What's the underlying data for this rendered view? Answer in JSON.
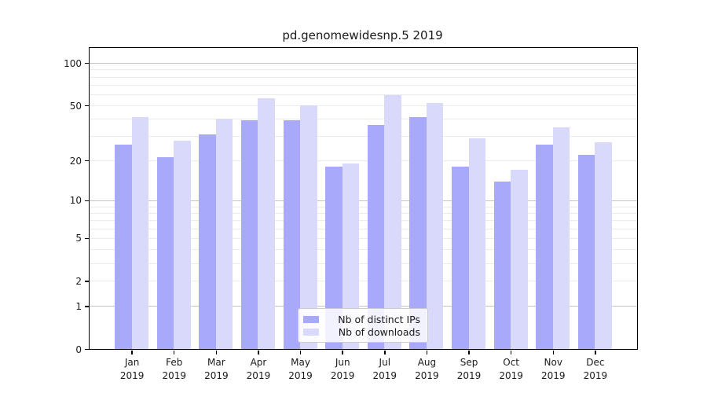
{
  "chart_data": {
    "type": "bar",
    "title": "pd.genomewidesnp.5 2019",
    "categories": [
      "Jan",
      "Feb",
      "Mar",
      "Apr",
      "May",
      "Jun",
      "Jul",
      "Aug",
      "Sep",
      "Oct",
      "Nov",
      "Dec"
    ],
    "category_year": "2019",
    "series": [
      {
        "name": "Nb of distinct IPs",
        "color": "#a9a9fb",
        "values": [
          26,
          21,
          31,
          39,
          39,
          18,
          36,
          41,
          18,
          14,
          26,
          22
        ]
      },
      {
        "name": "Nb of downloads",
        "color": "#d9d9fb",
        "values": [
          41,
          28,
          40,
          56,
          50,
          19,
          59,
          52,
          29,
          17,
          35,
          27
        ]
      }
    ],
    "yscale": "log1p",
    "ylim": [
      0,
      128
    ],
    "y_tick_values": [
      100,
      50,
      20,
      10,
      5,
      2,
      1,
      0
    ],
    "y_major_gridlines": [
      1,
      10,
      100
    ],
    "y_minor_gridlines": [
      2,
      3,
      4,
      5,
      6,
      7,
      8,
      9,
      20,
      30,
      40,
      50,
      60,
      70,
      80,
      90
    ],
    "grid": true,
    "legend_position": "lower center",
    "xlabel": "",
    "ylabel": ""
  },
  "colors": {
    "axis": "#000000",
    "grid_major": "#c3c3c3",
    "grid_minor": "#ebebeb",
    "legend_border": "#cccccc",
    "background": "#ffffff"
  }
}
